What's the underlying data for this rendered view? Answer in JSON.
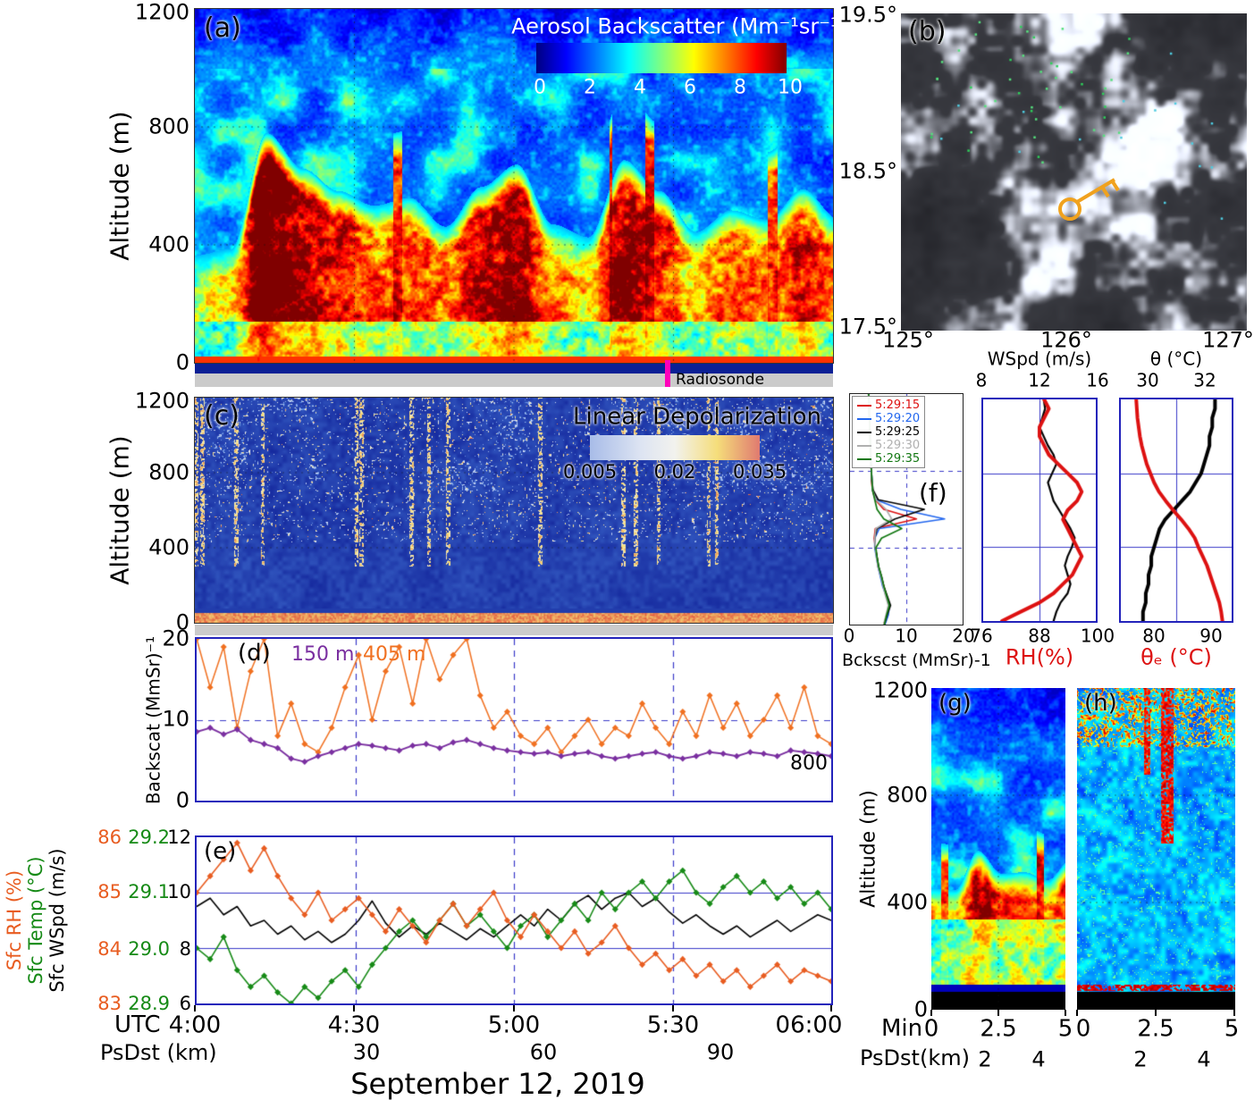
{
  "figure": {
    "date_title": "September 12, 2019"
  },
  "colors": {
    "axis_blue": "#2323bb",
    "series_purple": "#7a2fa0",
    "series_orange": "#f07020",
    "rh_orange": "#e85c20",
    "temp_green": "#168a16",
    "wspd_black": "#000000",
    "radiosonde_magenta": "#ff00bb",
    "profile_red": "#dd1111",
    "profile_blue": "#2266ee",
    "profile_black": "#000000",
    "profile_gray": "#b0b0b0",
    "profile_green": "#117711",
    "key_orange": "#f0a21e",
    "jet_stops": [
      "#000080",
      "#0000ff",
      "#00ffff",
      "#ffff00",
      "#ff0000",
      "#800000"
    ],
    "depol_stops": [
      "#a8bce8",
      "#dde4f2",
      "#f2f2ee",
      "#f5dd7a",
      "#e07a70"
    ]
  },
  "panel_a": {
    "tag": "(a)",
    "ylabel": "Altitude (m)",
    "yticks": [
      "1200",
      "800",
      "400",
      "0"
    ],
    "colorbar_title": "Aerosol Backscatter (Mm⁻¹sr⁻¹)",
    "colorbar_ticks": [
      "0",
      "2",
      "4",
      "6",
      "8",
      "10"
    ],
    "radiosonde_label": "Radiosonde"
  },
  "panel_b": {
    "tag": "(b)",
    "lat_ticks": [
      "19.5°",
      "18.5°",
      "17.5°"
    ],
    "lon_ticks": [
      "125°",
      "126°",
      "127°"
    ]
  },
  "panel_c": {
    "tag": "(c)",
    "ylabel": "Altitude (m)",
    "yticks": [
      "1200",
      "800",
      "400",
      "0"
    ],
    "colorbar_title": "Linear Depolarization",
    "colorbar_ticks": [
      "0.005",
      "0.02",
      "0.035"
    ]
  },
  "panel_d": {
    "tag": "(d)",
    "ylabel": "Backscat (MmSr)⁻¹",
    "yticks": [
      "20",
      "10",
      "0"
    ],
    "legend": [
      {
        "label": "150 m"
      },
      {
        "label": "405 m"
      }
    ],
    "stray_label": "800"
  },
  "panel_e": {
    "tag": "(e)",
    "axis_labels": [
      {
        "label": "Sfc RH (%)"
      },
      {
        "label": "Sfc Temp (°C)"
      },
      {
        "label": "Sfc WSpd (m/s)"
      }
    ],
    "rh_ticks": [
      "86",
      "85",
      "84",
      "83"
    ],
    "temp_ticks": [
      "29.2",
      "29.1",
      "29.0",
      "28.9"
    ],
    "wspd_ticks": [
      "12",
      "10",
      "8",
      "6"
    ]
  },
  "xaxis": {
    "utc_label": "UTC",
    "time_ticks": [
      "4:00",
      "4:30",
      "5:00",
      "5:30",
      "06:00"
    ],
    "psdst_label": "PsDst (km)",
    "psdst_ticks": [
      "30",
      "60",
      "90"
    ]
  },
  "panel_f": {
    "tag": "(f)",
    "legend": [
      {
        "label": "5:29:15"
      },
      {
        "label": "5:29:20"
      },
      {
        "label": "5:29:25"
      },
      {
        "label": "5:29:30"
      },
      {
        "label": "5:29:35"
      }
    ],
    "f1_xlabel": "Bckscst (MmSr)-1",
    "f1_xticks": [
      "0",
      "10",
      "20"
    ],
    "f2_top_label": "WSpd (m/s)",
    "f2_top_ticks": [
      "8",
      "12",
      "16"
    ],
    "f2_bottom_ticks": [
      "76",
      "88",
      "100"
    ],
    "f2_bottom_label": "RH(%)",
    "f3_top_label": "θ (°C)",
    "f3_top_ticks": [
      "30",
      "32"
    ],
    "f3_bottom_ticks": [
      "80",
      "90"
    ],
    "f3_bottom_label": "θₑ (°C)"
  },
  "panel_gh": {
    "g_tag": "(g)",
    "h_tag": "(h)",
    "ylabel": "Altitude (m)",
    "yticks": [
      "1200",
      "800",
      "400",
      "0"
    ],
    "min_label": "Min",
    "g_xticks": [
      "0",
      "2.5",
      "5"
    ],
    "h_xticks": [
      "0",
      "2.5",
      "5"
    ],
    "psdst_label": "PsDst(km)",
    "g_psdst_ticks": [
      "2",
      "4"
    ],
    "h_psdst_ticks": [
      "2",
      "4"
    ]
  },
  "chart_data": [
    {
      "id": "a",
      "type": "heatmap",
      "title": "Aerosol Backscatter (Mm-1 sr-1)",
      "x_axis": "UTC 4:00 to 6:00 (PsDst 0 to ~110 km)",
      "y_axis": "Altitude 0-1200 m",
      "color_range": [
        0,
        10
      ],
      "colorbar_ticks": [
        0,
        2,
        4,
        6,
        8,
        10
      ],
      "summary": "Convective aerosol layer: backscatter 8-10 from near surface to plume tops varying 400-800 m; 5-7 in lowest 150 m; 1-3 (dark blue) above the layer with cyan cloud patches near 700-1000 m; radiosonde launch marked near 5:29 UTC"
    },
    {
      "id": "b",
      "type": "satellite-image",
      "lat_range": [
        17.5,
        19.5
      ],
      "lon_range": [
        125,
        127
      ],
      "summary": "Grayscale visible satellite scene with scattered shallow cumulus; green/cyan cloud-detection specks clustered near 18.7N 125.8E; orange key-shaped track symbol near 18.4N 126.2E"
    },
    {
      "id": "c",
      "type": "heatmap",
      "title": "Linear Depolarization",
      "x_axis": "UTC 4:00 to 6:00",
      "y_axis": "Altitude 0-1200 m",
      "color_range": [
        0.005,
        0.035
      ],
      "colorbar_ticks": [
        0.005,
        0.02,
        0.035
      ],
      "summary": "Depolarization mostly below 0.01 (dark blue); sparse speckle and narrow vertical streaks of 0.02-0.035 above 400 m; enhanced thin layer at the surface"
    },
    {
      "id": "d",
      "type": "line",
      "ylabel": "Backscat (MmSr)-1",
      "ylim": [
        0,
        20
      ],
      "x_minutes_from_4utc": {
        "start": 0,
        "end": 120,
        "n": 48
      },
      "series": [
        {
          "name": "150 m",
          "color": "#7a2fa0",
          "values": [
            8.5,
            9,
            8.2,
            8.8,
            7.5,
            7,
            6.5,
            5.2,
            4.8,
            5.5,
            6,
            6.5,
            7,
            6.8,
            6.5,
            6.2,
            6.8,
            7,
            6.5,
            7.2,
            7.5,
            7,
            6.5,
            6.2,
            6,
            5.8,
            6,
            5.5,
            5.8,
            6,
            5.5,
            5.2,
            5.5,
            5.8,
            6,
            5.5,
            5.2,
            5.5,
            6,
            5.8,
            5.5,
            6,
            5.8,
            5.5,
            6.2,
            6,
            5.8,
            5.5
          ]
        },
        {
          "name": "405 m",
          "color": "#f07020",
          "values": [
            20,
            14,
            19,
            9,
            16,
            20,
            8,
            12,
            7,
            6,
            9,
            14,
            18,
            10,
            16,
            19,
            12,
            20,
            15,
            18,
            20,
            13,
            9,
            11,
            8,
            7,
            9,
            6,
            8,
            10,
            7,
            9,
            8,
            12,
            9,
            7,
            11,
            8,
            13,
            9,
            12,
            8,
            10,
            13,
            9,
            14,
            8,
            7
          ]
        }
      ]
    },
    {
      "id": "e",
      "type": "line",
      "x_minutes_from_4utc": {
        "start": 0,
        "end": 120,
        "n": 48
      },
      "series": [
        {
          "name": "Sfc RH (%)",
          "color": "#e85c20",
          "ylim": [
            83,
            86
          ],
          "values": [
            85.0,
            85.3,
            85.6,
            85.9,
            85.4,
            85.8,
            85.3,
            84.9,
            84.6,
            85.0,
            84.5,
            84.7,
            84.9,
            84.6,
            84.3,
            84.7,
            84.4,
            84.1,
            84.5,
            84.8,
            84.4,
            84.7,
            85.0,
            84.5,
            84.2,
            84.6,
            84.3,
            84.0,
            84.3,
            83.9,
            84.1,
            84.4,
            84.0,
            83.7,
            83.9,
            83.6,
            83.8,
            83.5,
            83.7,
            83.4,
            83.6,
            83.3,
            83.5,
            83.7,
            83.4,
            83.6,
            83.5,
            83.4
          ]
        },
        {
          "name": "Sfc Temp (°C)",
          "color": "#168a16",
          "ylim": [
            28.9,
            29.2
          ],
          "values": [
            29.0,
            28.98,
            29.02,
            28.96,
            28.93,
            28.95,
            28.92,
            28.9,
            28.93,
            28.91,
            28.94,
            28.96,
            28.93,
            28.97,
            29.0,
            29.03,
            29.05,
            29.02,
            29.05,
            29.08,
            29.04,
            29.06,
            29.03,
            29.0,
            29.04,
            29.06,
            29.02,
            29.05,
            29.08,
            29.05,
            29.1,
            29.07,
            29.1,
            29.12,
            29.09,
            29.12,
            29.14,
            29.1,
            29.08,
            29.11,
            29.13,
            29.1,
            29.12,
            29.09,
            29.11,
            29.08,
            29.1,
            29.07
          ]
        },
        {
          "name": "Sfc WSpd (m/s)",
          "color": "#000000",
          "ylim": [
            6,
            12
          ],
          "values": [
            9.5,
            9.8,
            9.2,
            9.5,
            8.8,
            9.0,
            8.5,
            8.8,
            8.3,
            8.6,
            8.2,
            8.5,
            9.0,
            9.7,
            8.9,
            8.4,
            8.8,
            8.5,
            8.9,
            8.6,
            8.3,
            8.7,
            8.4,
            8.8,
            9.2,
            8.8,
            9.4,
            9.0,
            9.6,
            9.9,
            9.4,
            9.8,
            10.0,
            9.5,
            9.8,
            9.3,
            8.9,
            9.2,
            8.8,
            8.5,
            8.8,
            8.4,
            8.7,
            9.0,
            8.6,
            8.9,
            9.2,
            9.0
          ]
        }
      ]
    },
    {
      "id": "f1",
      "type": "line",
      "orientation": "profile",
      "xlabel": "Bckscst (MmSr)-1",
      "xlim": [
        0,
        20
      ],
      "altitudes_m": [
        0,
        50,
        100,
        150,
        200,
        250,
        300,
        350,
        400,
        450,
        500,
        550,
        600,
        650,
        700,
        750,
        800,
        850,
        900,
        950,
        1000,
        1050,
        1100,
        1150,
        1200
      ],
      "series": [
        {
          "name": "5:29:15",
          "color": "#dd1111",
          "values": [
            6.0,
            6.5,
            7.0,
            6.5,
            6.0,
            5.5,
            5.0,
            4.8,
            4.5,
            4.3,
            4.5,
            11.8,
            6.0,
            4.5,
            4.0,
            3.8,
            3.8,
            3.7,
            3.6,
            3.6,
            3.5,
            3.5,
            3.4,
            3.4,
            3.3
          ]
        },
        {
          "name": "5:29:20",
          "color": "#2266ee",
          "values": [
            6.2,
            6.8,
            7.0,
            6.4,
            5.8,
            5.4,
            5.0,
            4.7,
            4.4,
            4.4,
            5.2,
            16.8,
            9.0,
            4.6,
            4.0,
            3.9,
            3.8,
            3.7,
            3.7,
            3.6,
            3.5,
            3.5,
            3.4,
            3.4,
            3.3
          ]
        },
        {
          "name": "5:29:25",
          "color": "#000000",
          "values": [
            6.1,
            6.6,
            7.2,
            6.6,
            6.0,
            5.6,
            5.1,
            4.8,
            4.5,
            4.4,
            4.8,
            8.0,
            13.2,
            5.0,
            4.1,
            3.9,
            3.8,
            3.7,
            3.7,
            3.6,
            3.5,
            3.5,
            3.4,
            3.4,
            3.3
          ]
        },
        {
          "name": "5:29:30",
          "color": "#b0b0b0",
          "values": [
            6.0,
            6.4,
            6.8,
            6.3,
            5.9,
            5.5,
            5.0,
            4.7,
            4.5,
            4.4,
            4.6,
            7.4,
            6.4,
            4.6,
            4.0,
            3.9,
            3.8,
            3.7,
            3.6,
            3.6,
            3.5,
            3.5,
            3.4,
            3.4,
            3.3
          ]
        },
        {
          "name": "5:29:35",
          "color": "#117711",
          "values": [
            6.1,
            6.5,
            7.0,
            6.5,
            6.0,
            5.6,
            5.1,
            4.8,
            4.6,
            5.6,
            9.2,
            6.0,
            4.8,
            4.4,
            4.0,
            3.9,
            3.8,
            3.7,
            3.6,
            3.6,
            3.5,
            3.5,
            3.4,
            3.4,
            3.3
          ]
        }
      ]
    },
    {
      "id": "f2",
      "type": "line",
      "orientation": "profile",
      "altitudes_m": [
        0,
        50,
        100,
        150,
        200,
        250,
        300,
        350,
        400,
        450,
        500,
        550,
        600,
        650,
        700,
        750,
        800,
        850,
        900,
        950,
        1000,
        1050,
        1100,
        1150,
        1200
      ],
      "series": [
        {
          "name": "WSpd (m/s)",
          "color": "#000000",
          "xlim": [
            8,
            16
          ],
          "values": [
            13.0,
            13.2,
            13.5,
            14.0,
            14.2,
            14.0,
            13.8,
            14.0,
            14.3,
            14.5,
            14.2,
            13.8,
            13.4,
            13.0,
            12.8,
            12.6,
            12.9,
            13.2,
            13.0,
            12.6,
            12.3,
            12.0,
            12.2,
            12.4,
            12.3
          ]
        },
        {
          "name": "RH(%)",
          "color": "#dd1111",
          "xlim": [
            76,
            100
          ],
          "values": [
            80,
            84,
            88,
            91,
            93,
            95,
            96,
            97,
            96,
            95,
            94,
            93,
            94,
            96,
            97,
            96,
            94,
            92,
            90,
            89,
            88,
            88,
            89,
            90,
            89
          ]
        }
      ]
    },
    {
      "id": "f3",
      "type": "line",
      "orientation": "profile",
      "altitudes_m": [
        0,
        50,
        100,
        150,
        200,
        250,
        300,
        350,
        400,
        450,
        500,
        550,
        600,
        650,
        700,
        750,
        800,
        850,
        900,
        950,
        1000,
        1050,
        1100,
        1150,
        1200
      ],
      "series": [
        {
          "name": "θ (°C)",
          "color": "#000000",
          "xlim": [
            29,
            33
          ],
          "values": [
            29.8,
            29.8,
            29.9,
            29.9,
            30.0,
            30.0,
            30.1,
            30.1,
            30.2,
            30.3,
            30.4,
            30.6,
            30.9,
            31.2,
            31.5,
            31.7,
            31.9,
            32.0,
            32.1,
            32.2,
            32.2,
            32.3,
            32.3,
            32.4,
            32.4
          ]
        },
        {
          "name": "θₑ (°C)",
          "color": "#dd1111",
          "xlim": [
            76,
            94
          ],
          "values": [
            92.5,
            92.3,
            92.0,
            91.5,
            91.0,
            90.5,
            90.0,
            89.3,
            88.6,
            88.0,
            87.0,
            85.8,
            84.5,
            83.3,
            82.2,
            81.4,
            80.8,
            80.2,
            79.8,
            79.4,
            79.1,
            78.9,
            78.7,
            78.6,
            78.5
          ]
        }
      ]
    },
    {
      "id": "g",
      "type": "heatmap",
      "x_axis": "Min 0 to 5 (PsDst 0 to ~5 km)",
      "y_axis": "Altitude 0-1200 m",
      "color_range": [
        0,
        10
      ],
      "summary": "Zoomed backscatter 5:29-5:34: yellow 6-7 below ~350 m, dark-red blobs 8-10 between 350 and ~700 m, cyan/blue 2-4 above; black no-data strip below ~70 m"
    },
    {
      "id": "h",
      "type": "heatmap",
      "x_axis": "Min 0 to 5",
      "y_axis": "Altitude 0-1200 m",
      "color_range": [
        0,
        10
      ],
      "summary": "Zoomed depolarization: speckled blue field with red/orange streaks above ~650 m near minute 3, orange speckle band near 1000-1200 m, thin red layer just above the surface, black no-data strip at bottom"
    }
  ]
}
